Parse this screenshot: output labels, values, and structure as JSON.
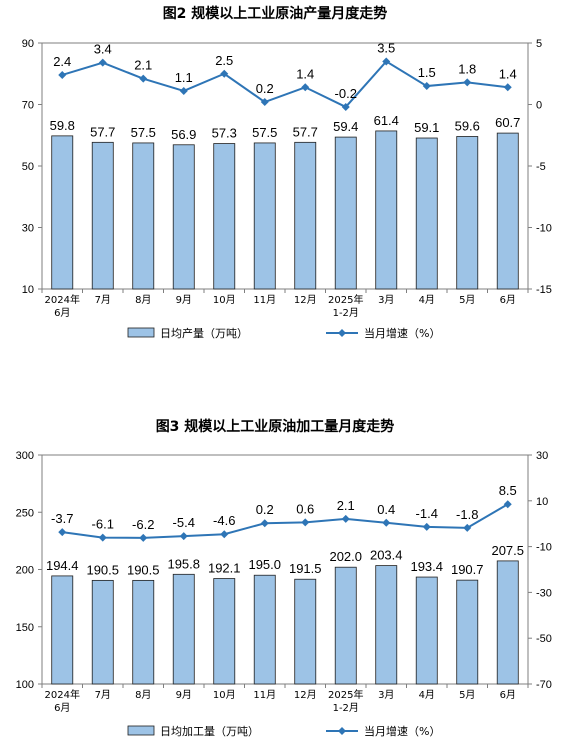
{
  "chart_data": [
    {
      "type": "bar",
      "title": "图2  规模以上工业原油产量月度走势",
      "categories": [
        [
          "2024年",
          "6月"
        ],
        [
          "7月"
        ],
        [
          "8月"
        ],
        [
          "9月"
        ],
        [
          "10月"
        ],
        [
          "11月"
        ],
        [
          "12月"
        ],
        [
          "2025年",
          "1-2月"
        ],
        [
          "3月"
        ],
        [
          "4月"
        ],
        [
          "5月"
        ],
        [
          "6月"
        ]
      ],
      "ylim_left": [
        10,
        90
      ],
      "yticks_left": [
        10,
        30,
        50,
        70,
        90
      ],
      "ylim_right": [
        -15,
        5
      ],
      "yticks_right": [
        -15,
        -10,
        -5,
        0,
        5
      ],
      "series": [
        {
          "name": "日均产量（万吨）",
          "kind": "bar",
          "axis": "left",
          "values": [
            59.8,
            57.7,
            57.5,
            56.9,
            57.3,
            57.5,
            57.7,
            59.4,
            61.4,
            59.1,
            59.6,
            60.7
          ]
        },
        {
          "name": "当月增速（%）",
          "kind": "line",
          "axis": "right",
          "values": [
            2.4,
            3.4,
            2.1,
            1.1,
            2.5,
            0.2,
            1.4,
            -0.2,
            3.5,
            1.5,
            1.8,
            1.4
          ]
        }
      ],
      "bar_labels": [
        "59.8",
        "57.7",
        "57.5",
        "56.9",
        "57.3",
        "57.5",
        "57.7",
        "59.4",
        "61.4",
        "59.1",
        "59.6",
        "60.7"
      ],
      "line_labels": [
        "2.4",
        "3.4",
        "2.1",
        "1.1",
        "2.5",
        "0.2",
        "1.4",
        "-0.2",
        "3.5",
        "1.5",
        "1.8",
        "1.4"
      ],
      "legend_position": "bottom",
      "grid": false
    },
    {
      "type": "bar",
      "title": "图3  规模以上工业原油加工量月度走势",
      "categories": [
        [
          "2024年",
          "6月"
        ],
        [
          "7月"
        ],
        [
          "8月"
        ],
        [
          "9月"
        ],
        [
          "10月"
        ],
        [
          "11月"
        ],
        [
          "12月"
        ],
        [
          "2025年",
          "1-2月"
        ],
        [
          "3月"
        ],
        [
          "4月"
        ],
        [
          "5月"
        ],
        [
          "6月"
        ]
      ],
      "ylim_left": [
        100,
        300
      ],
      "yticks_left": [
        100,
        150,
        200,
        250,
        300
      ],
      "ylim_right": [
        -70,
        30
      ],
      "yticks_right": [
        -70,
        -50,
        -30,
        -10,
        10,
        30
      ],
      "series": [
        {
          "name": "日均加工量（万吨）",
          "kind": "bar",
          "axis": "left",
          "values": [
            194.4,
            190.5,
            190.5,
            195.8,
            192.1,
            195.0,
            191.5,
            202.0,
            203.4,
            193.4,
            190.7,
            207.5
          ]
        },
        {
          "name": "当月增速（%）",
          "kind": "line",
          "axis": "right",
          "values": [
            -3.7,
            -6.1,
            -6.2,
            -5.4,
            -4.6,
            0.2,
            0.6,
            2.1,
            0.4,
            -1.4,
            -1.8,
            8.5
          ]
        }
      ],
      "bar_labels": [
        "194.4",
        "190.5",
        "190.5",
        "195.8",
        "192.1",
        "195.0",
        "191.5",
        "202.0",
        "203.4",
        "193.4",
        "190.7",
        "207.5"
      ],
      "line_labels": [
        "-3.7",
        "-6.1",
        "-6.2",
        "-5.4",
        "-4.6",
        "0.2",
        "0.6",
        "2.1",
        "0.4",
        "-1.4",
        "-1.8",
        "8.5"
      ],
      "legend_position": "bottom",
      "grid": false
    }
  ],
  "colors": {
    "bar_fill": "#9DC3E6",
    "bar_stroke": "#1F1F1F",
    "line": "#2E75B6",
    "marker": "#2E75B6",
    "axis": "#7F7F7F"
  }
}
